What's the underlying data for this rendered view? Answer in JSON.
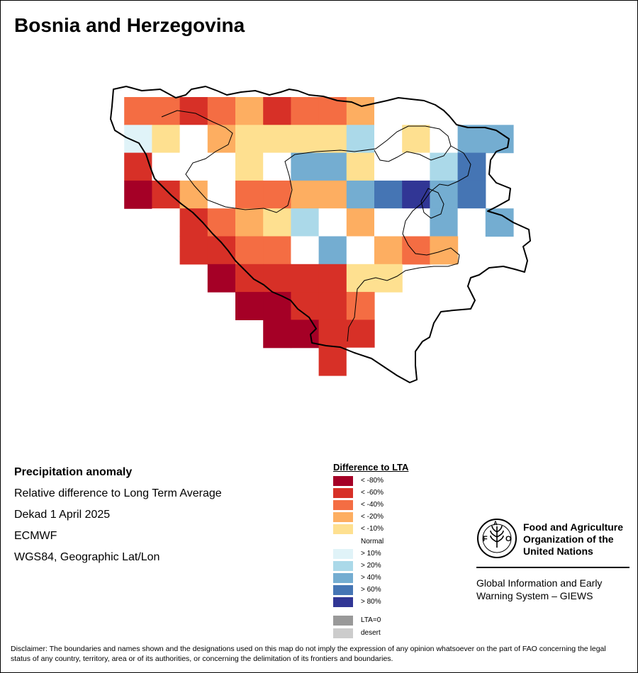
{
  "title": "Bosnia and Herzegovina",
  "info": {
    "heading": "Precipitation anomaly",
    "line1": "Relative difference to Long Term Average",
    "line2": "Dekad 1 April 2025",
    "line3": "ECMWF",
    "line4": "WGS84, Geographic Lat/Lon"
  },
  "legend": {
    "title": "Difference to LTA",
    "items": [
      {
        "key": "lt80",
        "label": "< -80%",
        "color": "#a50026"
      },
      {
        "key": "lt60",
        "label": "< -60%",
        "color": "#d73027"
      },
      {
        "key": "lt40",
        "label": "< -40%",
        "color": "#f46d43"
      },
      {
        "key": "lt20",
        "label": "< -20%",
        "color": "#fdae61"
      },
      {
        "key": "lt10",
        "label": "< -10%",
        "color": "#fee090"
      },
      {
        "key": "normal",
        "label": "Normal",
        "color": "#ffffff"
      },
      {
        "key": "gt10",
        "label": "> 10%",
        "color": "#e0f3f8"
      },
      {
        "key": "gt20",
        "label": "> 20%",
        "color": "#abd9e9"
      },
      {
        "key": "gt40",
        "label": "> 40%",
        "color": "#74add1"
      },
      {
        "key": "gt60",
        "label": "> 60%",
        "color": "#4575b4"
      },
      {
        "key": "gt80",
        "label": "> 80%",
        "color": "#313695"
      },
      {
        "key": "lta0",
        "label": "LTA=0",
        "color": "#999999"
      },
      {
        "key": "desert",
        "label": "desert",
        "color": "#cccccc"
      }
    ]
  },
  "grid": {
    "cols": 15,
    "rows": 10,
    "cells": [
      [
        null,
        "lt40",
        "lt40",
        "lt60",
        "lt40",
        "lt20",
        "lt60",
        "lt40",
        "lt40",
        "lt20",
        "normal",
        "normal",
        null,
        null,
        null
      ],
      [
        null,
        "gt10",
        "lt10",
        "normal",
        "lt20",
        "lt10",
        "lt10",
        "lt10",
        "lt10",
        "gt20",
        "normal",
        "lt10",
        "normal",
        "gt40",
        "gt40"
      ],
      [
        null,
        "lt60",
        "normal",
        "normal",
        "normal",
        "lt10",
        "normal",
        "gt40",
        "gt40",
        "lt10",
        "normal",
        "normal",
        "gt20",
        "gt60",
        null
      ],
      [
        null,
        "lt80",
        "lt60",
        "lt20",
        "normal",
        "lt40",
        "lt40",
        "lt20",
        "lt20",
        "gt40",
        "gt60",
        "gt80",
        "gt40",
        "gt60",
        null
      ],
      [
        null,
        null,
        "normal",
        "lt60",
        "lt40",
        "lt20",
        "lt10",
        "gt20",
        "normal",
        "lt20",
        "normal",
        "normal",
        "gt40",
        "normal",
        "gt40"
      ],
      [
        null,
        null,
        null,
        "lt60",
        "lt60",
        "lt40",
        "lt40",
        "normal",
        "gt40",
        "normal",
        "lt20",
        "lt40",
        "lt20",
        null,
        null
      ],
      [
        null,
        null,
        null,
        null,
        "lt80",
        "lt60",
        "lt60",
        "lt60",
        "lt60",
        "lt10",
        "lt10",
        null,
        null,
        null,
        null
      ],
      [
        null,
        null,
        null,
        null,
        null,
        "lt80",
        "lt80",
        "lt60",
        "lt60",
        "lt40",
        null,
        null,
        null,
        null,
        null
      ],
      [
        null,
        null,
        null,
        null,
        null,
        null,
        "lt80",
        "lt80",
        "lt60",
        "lt60",
        null,
        null,
        null,
        null,
        null
      ],
      [
        null,
        null,
        null,
        null,
        null,
        null,
        null,
        null,
        "lt60",
        "normal",
        null,
        null,
        null,
        null,
        null
      ]
    ]
  },
  "fao": {
    "name_line1": "Food and Agriculture",
    "name_line2": "Organization of the",
    "name_line3": "United Nations",
    "giews_line1": "Global Information and Early",
    "giews_line2": "Warning System – GIEWS",
    "emblem_text": "FIAT PANIS"
  },
  "disclaimer": "Disclaimer: The boundaries and names shown and the designations used on this map do not imply the expression of any opinion whatsoever on the part of FAO concerning the legal status of any country, territory, area or of its authorities, or concerning the delimitation of its frontiers and boundaries."
}
